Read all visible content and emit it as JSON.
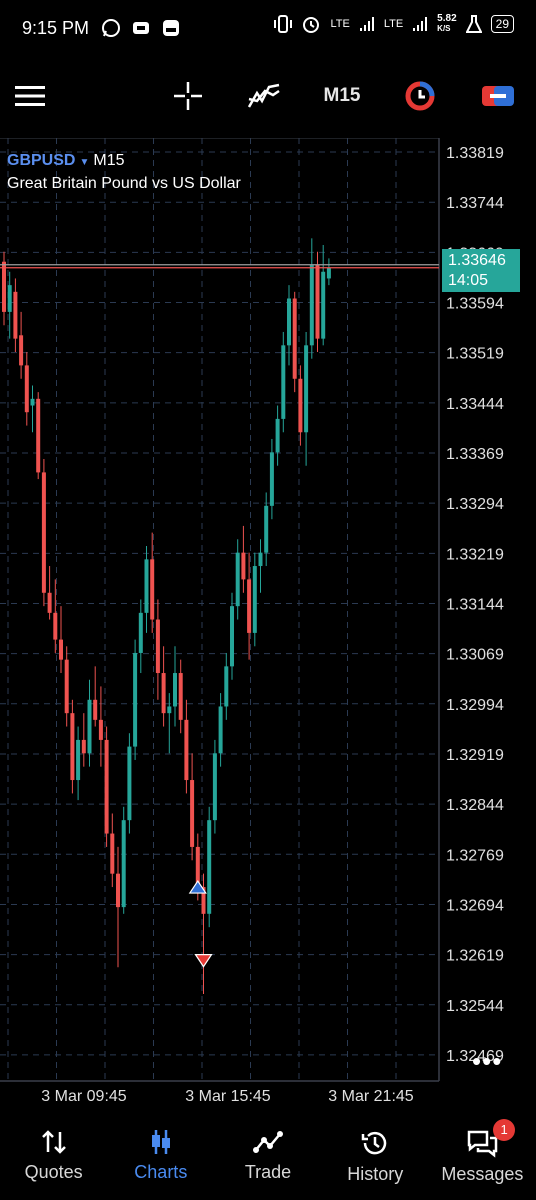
{
  "status": {
    "time": "9:15 PM",
    "lte1": "LTE",
    "lte2": "LTE",
    "speed_value": "5.82",
    "speed_unit": "K/S",
    "battery": "29"
  },
  "toolbar": {
    "timeframe": "M15",
    "menu_icon": "hamburger-icon",
    "crosshair_icon": "crosshair-icon",
    "indicator_icon": "indicator-icon",
    "objects_icon": "objects-icon",
    "trade_icon": "one-click-trade-icon"
  },
  "chart": {
    "symbol": "GBPUSD",
    "timeframe": "M15",
    "description": "Great Britain Pound vs US Dollar",
    "current_price": "1.33646",
    "countdown": "14:05",
    "more_label": "•••",
    "colors": {
      "bull": "#26a69a",
      "bear": "#ef5350",
      "grid": "#2b3a52",
      "axis": "#3a3f4a",
      "bid_line": "#ef5350",
      "ask_line": "#9e9e9e"
    }
  },
  "chart_data": {
    "type": "candlestick",
    "y_ticks": [
      "1.33819",
      "1.33744",
      "1.33669",
      "1.33594",
      "1.33519",
      "1.33444",
      "1.33369",
      "1.33294",
      "1.33219",
      "1.33144",
      "1.33069",
      "1.32994",
      "1.32919",
      "1.32844",
      "1.32769",
      "1.32694",
      "1.32619",
      "1.32544",
      "1.32469"
    ],
    "x_ticks": [
      "3 Mar 09:45",
      "3 Mar 15:45",
      "3 Mar 21:45"
    ],
    "ylim": [
      1.3243,
      1.3384
    ],
    "current_price": 1.33646,
    "candles": [
      {
        "o": 1.33655,
        "h": 1.3367,
        "l": 1.3356,
        "c": 1.3358
      },
      {
        "o": 1.3358,
        "h": 1.3364,
        "l": 1.3354,
        "c": 1.3362
      },
      {
        "o": 1.3361,
        "h": 1.3363,
        "l": 1.3352,
        "c": 1.3354
      },
      {
        "o": 1.33545,
        "h": 1.3358,
        "l": 1.3348,
        "c": 1.335
      },
      {
        "o": 1.335,
        "h": 1.3352,
        "l": 1.3341,
        "c": 1.3343
      },
      {
        "o": 1.3344,
        "h": 1.3347,
        "l": 1.334,
        "c": 1.3345
      },
      {
        "o": 1.3345,
        "h": 1.3346,
        "l": 1.3333,
        "c": 1.3334
      },
      {
        "o": 1.3334,
        "h": 1.3336,
        "l": 1.3314,
        "c": 1.3316
      },
      {
        "o": 1.3316,
        "h": 1.332,
        "l": 1.3312,
        "c": 1.3313
      },
      {
        "o": 1.3313,
        "h": 1.3318,
        "l": 1.3307,
        "c": 1.3309
      },
      {
        "o": 1.3309,
        "h": 1.3314,
        "l": 1.3304,
        "c": 1.3306
      },
      {
        "o": 1.3306,
        "h": 1.3308,
        "l": 1.3296,
        "c": 1.3298
      },
      {
        "o": 1.3298,
        "h": 1.33,
        "l": 1.3286,
        "c": 1.3288
      },
      {
        "o": 1.3288,
        "h": 1.3296,
        "l": 1.3285,
        "c": 1.3294
      },
      {
        "o": 1.3294,
        "h": 1.3298,
        "l": 1.329,
        "c": 1.3292
      },
      {
        "o": 1.3292,
        "h": 1.3303,
        "l": 1.329,
        "c": 1.33
      },
      {
        "o": 1.33,
        "h": 1.3305,
        "l": 1.3296,
        "c": 1.3297
      },
      {
        "o": 1.3297,
        "h": 1.3302,
        "l": 1.329,
        "c": 1.3294
      },
      {
        "o": 1.3294,
        "h": 1.3296,
        "l": 1.3278,
        "c": 1.328
      },
      {
        "o": 1.328,
        "h": 1.3283,
        "l": 1.3272,
        "c": 1.3274
      },
      {
        "o": 1.3274,
        "h": 1.3278,
        "l": 1.326,
        "c": 1.3269
      },
      {
        "o": 1.3269,
        "h": 1.3284,
        "l": 1.3268,
        "c": 1.3282
      },
      {
        "o": 1.3282,
        "h": 1.3295,
        "l": 1.328,
        "c": 1.3293
      },
      {
        "o": 1.3293,
        "h": 1.3309,
        "l": 1.3291,
        "c": 1.3307
      },
      {
        "o": 1.3307,
        "h": 1.3315,
        "l": 1.3304,
        "c": 1.3313
      },
      {
        "o": 1.3313,
        "h": 1.3323,
        "l": 1.331,
        "c": 1.3321
      },
      {
        "o": 1.3321,
        "h": 1.3325,
        "l": 1.331,
        "c": 1.3312
      },
      {
        "o": 1.3312,
        "h": 1.3315,
        "l": 1.33,
        "c": 1.3304
      },
      {
        "o": 1.3304,
        "h": 1.3308,
        "l": 1.3296,
        "c": 1.3298
      },
      {
        "o": 1.3298,
        "h": 1.3301,
        "l": 1.3292,
        "c": 1.3299
      },
      {
        "o": 1.3299,
        "h": 1.3308,
        "l": 1.3296,
        "c": 1.3304
      },
      {
        "o": 1.3304,
        "h": 1.3306,
        "l": 1.3295,
        "c": 1.3297
      },
      {
        "o": 1.3297,
        "h": 1.33,
        "l": 1.3286,
        "c": 1.3288
      },
      {
        "o": 1.3288,
        "h": 1.3292,
        "l": 1.3276,
        "c": 1.3278
      },
      {
        "o": 1.3278,
        "h": 1.328,
        "l": 1.327,
        "c": 1.3272
      },
      {
        "o": 1.3272,
        "h": 1.3274,
        "l": 1.3256,
        "c": 1.3268
      },
      {
        "o": 1.3268,
        "h": 1.3284,
        "l": 1.3266,
        "c": 1.3282
      },
      {
        "o": 1.3282,
        "h": 1.3294,
        "l": 1.328,
        "c": 1.3292
      },
      {
        "o": 1.3292,
        "h": 1.3301,
        "l": 1.329,
        "c": 1.3299
      },
      {
        "o": 1.3299,
        "h": 1.3307,
        "l": 1.3297,
        "c": 1.3305
      },
      {
        "o": 1.3305,
        "h": 1.3316,
        "l": 1.3303,
        "c": 1.3314
      },
      {
        "o": 1.3314,
        "h": 1.3324,
        "l": 1.3312,
        "c": 1.3322
      },
      {
        "o": 1.3322,
        "h": 1.3326,
        "l": 1.3316,
        "c": 1.3318
      },
      {
        "o": 1.3318,
        "h": 1.3322,
        "l": 1.3306,
        "c": 1.331
      },
      {
        "o": 1.331,
        "h": 1.3322,
        "l": 1.3308,
        "c": 1.332
      },
      {
        "o": 1.332,
        "h": 1.3324,
        "l": 1.3316,
        "c": 1.3322
      },
      {
        "o": 1.3322,
        "h": 1.3331,
        "l": 1.332,
        "c": 1.3329
      },
      {
        "o": 1.3329,
        "h": 1.3339,
        "l": 1.3327,
        "c": 1.3337
      },
      {
        "o": 1.3337,
        "h": 1.3344,
        "l": 1.3335,
        "c": 1.3342
      },
      {
        "o": 1.3342,
        "h": 1.3355,
        "l": 1.334,
        "c": 1.3353
      },
      {
        "o": 1.3353,
        "h": 1.3362,
        "l": 1.335,
        "c": 1.336
      },
      {
        "o": 1.336,
        "h": 1.3361,
        "l": 1.3346,
        "c": 1.3348
      },
      {
        "o": 1.3348,
        "h": 1.335,
        "l": 1.3338,
        "c": 1.334
      },
      {
        "o": 1.334,
        "h": 1.3355,
        "l": 1.3335,
        "c": 1.3353
      },
      {
        "o": 1.3353,
        "h": 1.3369,
        "l": 1.3351,
        "c": 1.3365
      },
      {
        "o": 1.3365,
        "h": 1.3367,
        "l": 1.3352,
        "c": 1.3354
      },
      {
        "o": 1.3354,
        "h": 1.3368,
        "l": 1.3353,
        "c": 1.3364
      },
      {
        "o": 1.3363,
        "h": 1.3366,
        "l": 1.3362,
        "c": 1.33646
      }
    ],
    "trades": [
      {
        "type": "buy",
        "index": 34,
        "price": 1.3272
      },
      {
        "type": "sell",
        "index": 35,
        "price": 1.3261
      }
    ]
  },
  "nav": {
    "quotes": "Quotes",
    "charts": "Charts",
    "trade": "Trade",
    "history": "History",
    "messages": "Messages",
    "messages_badge": "1"
  }
}
